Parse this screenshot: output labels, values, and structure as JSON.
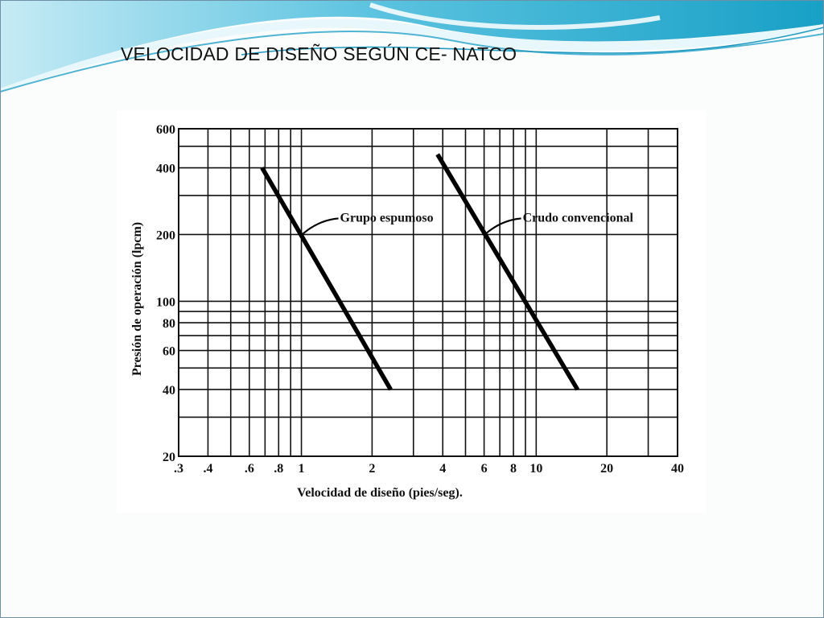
{
  "slide": {
    "title": "VELOCIDAD DE DISEÑO SEGÚN CE- NATCO"
  },
  "colors": {
    "wave_dark": "#1b9fc4",
    "wave_light": "#9fdcef",
    "grid": "#111111",
    "curve": "#000000"
  },
  "chart_data": {
    "type": "line",
    "xlabel": "Velocidad de diseño (pies/seg).",
    "ylabel": "Presión de operación (lpcm)",
    "x_scale": "log",
    "y_scale": "log",
    "xlim": [
      0.3,
      40
    ],
    "ylim": [
      20,
      600
    ],
    "grid": true,
    "x_ticks": [
      {
        "value": 0.3,
        "label": ".3"
      },
      {
        "value": 0.4,
        "label": ".4"
      },
      {
        "value": 0.6,
        "label": ".6"
      },
      {
        "value": 0.8,
        "label": ".8"
      },
      {
        "value": 1,
        "label": "1"
      },
      {
        "value": 2,
        "label": "2"
      },
      {
        "value": 4,
        "label": "4"
      },
      {
        "value": 6,
        "label": "6"
      },
      {
        "value": 8,
        "label": "8"
      },
      {
        "value": 10,
        "label": "10"
      },
      {
        "value": 20,
        "label": "20"
      },
      {
        "value": 40,
        "label": "40"
      }
    ],
    "y_ticks": [
      {
        "value": 20,
        "label": "20"
      },
      {
        "value": 40,
        "label": "40"
      },
      {
        "value": 60,
        "label": "60"
      },
      {
        "value": 80,
        "label": "80"
      },
      {
        "value": 100,
        "label": "100"
      },
      {
        "value": 200,
        "label": "200"
      },
      {
        "value": 400,
        "label": "400"
      },
      {
        "value": 600,
        "label": "600"
      }
    ],
    "x_grid": [
      0.3,
      0.4,
      0.5,
      0.6,
      0.7,
      0.8,
      0.9,
      1,
      2,
      3,
      4,
      5,
      6,
      7,
      8,
      9,
      10,
      20,
      30,
      40
    ],
    "y_grid": [
      20,
      30,
      40,
      50,
      60,
      70,
      80,
      90,
      100,
      200,
      300,
      400,
      500,
      600
    ],
    "series": [
      {
        "name": "Grupo espumoso",
        "x": [
          0.68,
          2.4
        ],
        "y": [
          400,
          40
        ],
        "label_at": {
          "x": 1.0,
          "y": 200
        }
      },
      {
        "name": "Crudo convencional",
        "x": [
          3.8,
          15
        ],
        "y": [
          460,
          40
        ],
        "label_at": {
          "x": 6.0,
          "y": 200
        }
      }
    ]
  }
}
